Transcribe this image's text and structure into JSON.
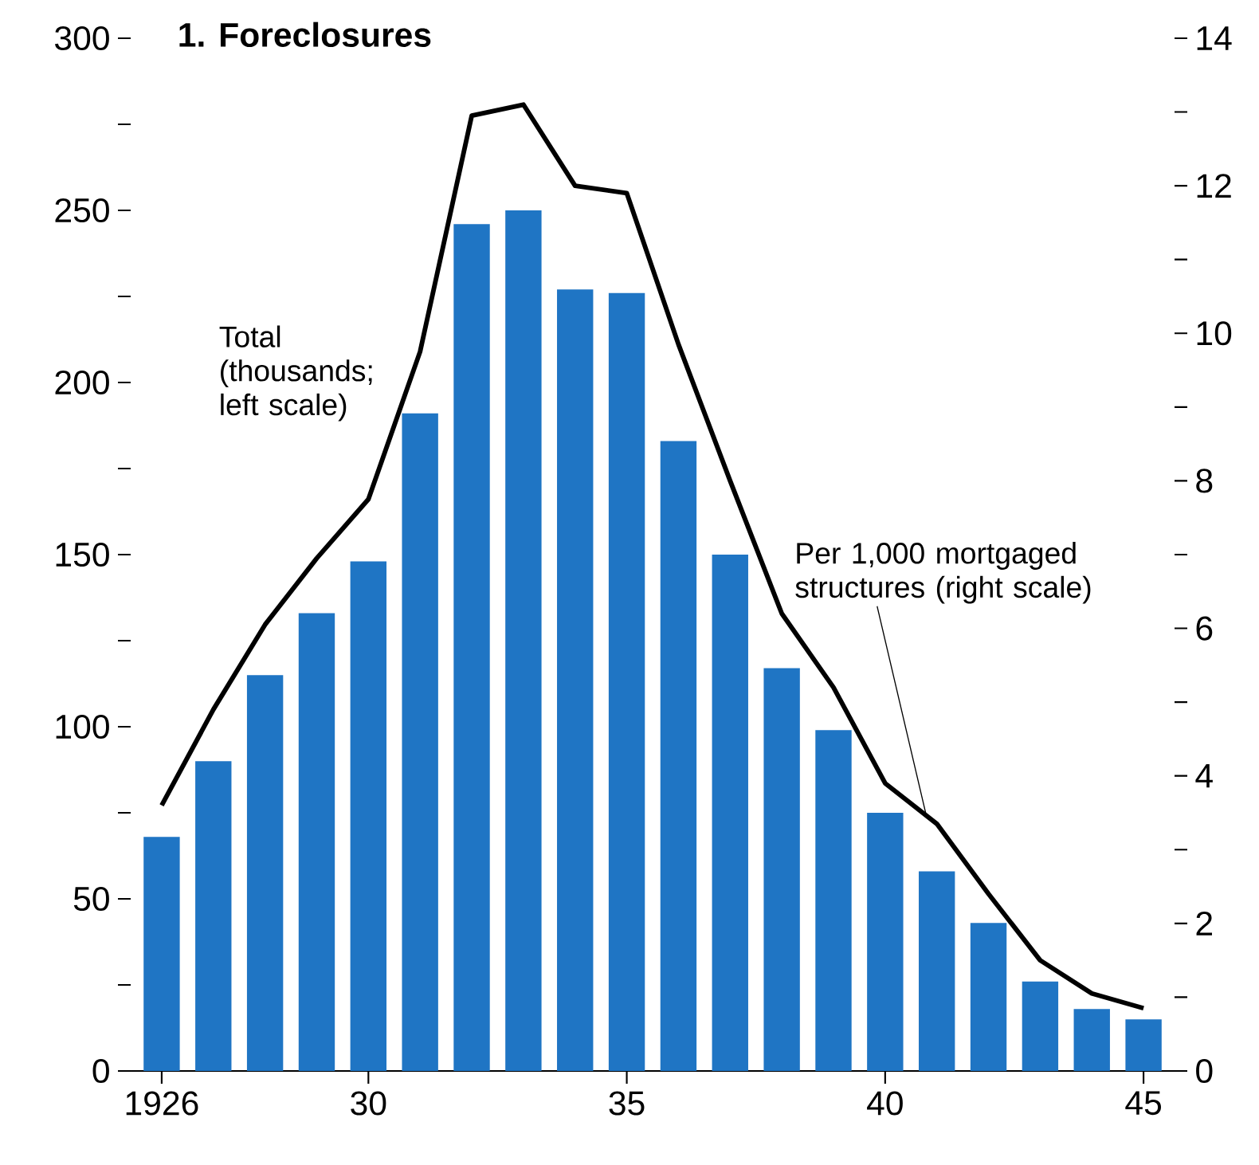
{
  "chart_data": {
    "type": "bar",
    "title": "1. Foreclosures",
    "x": [
      1926,
      1927,
      1928,
      1929,
      1930,
      1931,
      1932,
      1933,
      1934,
      1935,
      1936,
      1937,
      1938,
      1939,
      1940,
      1941,
      1942,
      1943,
      1944,
      1945
    ],
    "series": [
      {
        "name": "Total (thousands; left scale)",
        "color": "#1f75c4",
        "values": [
          68,
          90,
          115,
          133,
          148,
          191,
          246,
          250,
          227,
          226,
          183,
          150,
          117,
          99,
          75,
          58,
          43,
          26,
          18,
          15
        ]
      },
      {
        "name": "Per 1,000 mortgaged structures (right scale)",
        "type": "line",
        "axis": "y2",
        "color": "#000000",
        "values": [
          3.6,
          4.9,
          6.05,
          6.95,
          7.75,
          9.75,
          12.95,
          13.1,
          12.0,
          11.9,
          9.85,
          8.0,
          6.2,
          5.2,
          3.9,
          3.35,
          2.4,
          1.5,
          1.05,
          0.85
        ]
      }
    ],
    "xlim": [
      1925.4,
      1945.6
    ],
    "xticks": [
      {
        "value": 1926,
        "label": "1926"
      },
      {
        "value": 1930,
        "label": "30"
      },
      {
        "value": 1935,
        "label": "35"
      },
      {
        "value": 1940,
        "label": "40"
      },
      {
        "value": 1945,
        "label": "45"
      }
    ],
    "ylim": [
      0,
      300
    ],
    "yticks": [
      0,
      {
        "value": 25,
        "label": null
      },
      50,
      {
        "value": 75,
        "label": null
      },
      100,
      {
        "value": 125,
        "label": null
      },
      150,
      {
        "value": 175,
        "label": null
      },
      200,
      {
        "value": 225,
        "label": null
      },
      250,
      {
        "value": 275,
        "label": null
      },
      300
    ],
    "y2lim": [
      0,
      14
    ],
    "y2ticks": [
      0,
      {
        "value": 1,
        "label": null
      },
      2,
      {
        "value": 3,
        "label": null
      },
      4,
      {
        "value": 5,
        "label": null
      },
      6,
      {
        "value": 7,
        "label": null
      },
      8,
      {
        "value": 9,
        "label": null
      },
      10,
      {
        "value": 11,
        "label": null
      },
      12,
      {
        "value": 13,
        "label": null
      },
      14
    ],
    "grid": false,
    "legend": false
  }
}
